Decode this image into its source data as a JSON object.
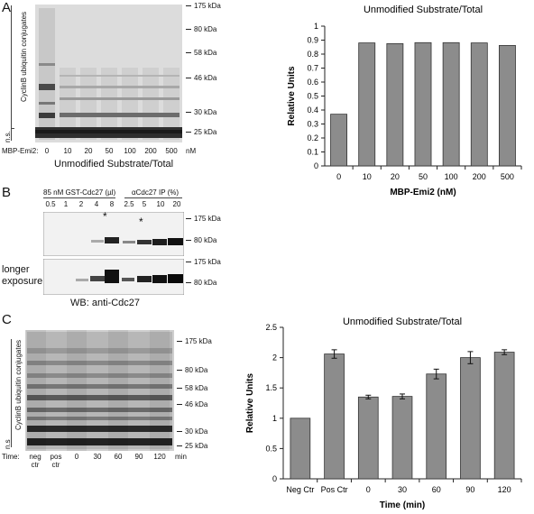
{
  "panel_A": {
    "letter": "A",
    "gel": {
      "ylabel": "CyclinB ubiquitin conjugates",
      "ns_label": "n.s.",
      "row_label": "MBP-Emi2:",
      "lanes": [
        "0",
        "10",
        "20",
        "50",
        "100",
        "200",
        "500"
      ],
      "unit": "nM",
      "markers": [
        "175 kDa",
        "80 kDa",
        "58 kDa",
        "46 kDa",
        "30 kDa",
        "25 kDa"
      ],
      "caption": "Unmodified Substrate/Total"
    }
  },
  "panel_B": {
    "letter": "B",
    "group1_label": "85 nM GST-Cdc27 (µl)",
    "group2_label": "αCdc27 IP (%)",
    "lanes": [
      "0.5",
      "1",
      "2",
      "4",
      "8",
      "2.5",
      "5",
      "10",
      "20"
    ],
    "star": "*",
    "markers_top": [
      "175 kDa",
      "80 kDa"
    ],
    "markers_bottom": [
      "175 kDa",
      "80 kDa"
    ],
    "exposure_label_1": "longer",
    "exposure_label_2": "exposure",
    "caption": "WB: anti-Cdc27"
  },
  "panel_C": {
    "letter": "C",
    "gel": {
      "ylabel": "CyclinB ubiquitin conjugates",
      "ns_label": "n.s",
      "row_label": "Time:",
      "lanes": [
        [
          "neg",
          "ctr"
        ],
        [
          "pos",
          "ctr"
        ],
        [
          "0"
        ],
        [
          "30"
        ],
        [
          "60"
        ],
        [
          "90"
        ],
        [
          "120"
        ]
      ],
      "unit": "min",
      "markers": [
        "175 kDa",
        "80 kDa",
        "58 kDa",
        "46 kDa",
        "30 kDa",
        "25 kDa"
      ]
    }
  },
  "chart_data": [
    {
      "type": "bar",
      "title": "Unmodified Substrate/Total",
      "xlabel": "MBP-Emi2 (nM)",
      "ylabel": "Relative Units",
      "categories": [
        "0",
        "10",
        "20",
        "50",
        "100",
        "200",
        "500"
      ],
      "values": [
        0.37,
        0.88,
        0.875,
        0.882,
        0.882,
        0.88,
        0.862
      ],
      "ylim": [
        0,
        1
      ],
      "yticks": [
        "0",
        "0.1",
        "0.2",
        "0.3",
        "0.4",
        "0.5",
        "0.6",
        "0.7",
        "0.8",
        "0.9",
        "1"
      ],
      "bar_color": "#8c8c8c",
      "grid": false
    },
    {
      "type": "bar",
      "title": "Unmodified Substrate/Total",
      "xlabel": "Time (min)",
      "ylabel": "Relative Units",
      "categories": [
        "Neg Ctr",
        "Pos Ctr",
        "0",
        "30",
        "60",
        "90",
        "120"
      ],
      "values": [
        1.0,
        2.06,
        1.35,
        1.36,
        1.73,
        2.0,
        2.09
      ],
      "errors": [
        0,
        0.07,
        0.03,
        0.04,
        0.08,
        0.1,
        0.04
      ],
      "ylim": [
        0,
        2.5
      ],
      "yticks": [
        "0",
        "0.5",
        "1",
        "1.5",
        "2",
        "2.5"
      ],
      "bar_color": "#8c8c8c",
      "grid": false
    }
  ]
}
